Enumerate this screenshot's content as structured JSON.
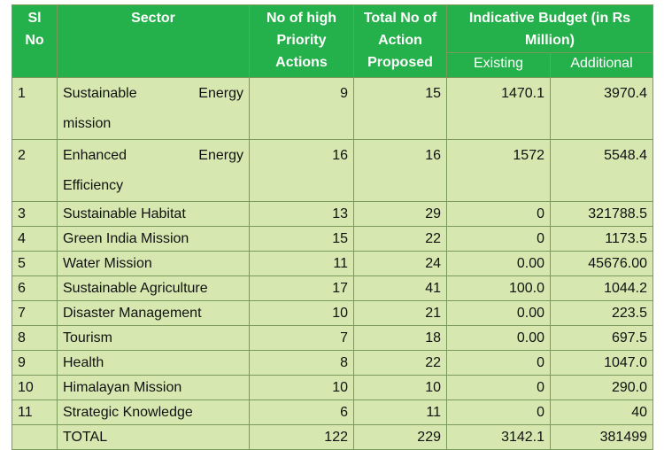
{
  "header": {
    "sl": "Sl\nNo",
    "sector": "Sector",
    "high": "No of high Priority Actions",
    "total": "Total No of Action Proposed",
    "budget": "Indicative Budget (in Rs Million)",
    "existing": "Existing",
    "additional": "Additional"
  },
  "rows": [
    {
      "sl": "1",
      "sector_a": "Sustainable",
      "sector_b": "Energy",
      "sector_c": "mission",
      "high": "9",
      "total": "15",
      "existing": "1470.1",
      "additional": "3970.4"
    },
    {
      "sl": "2",
      "sector_a": "Enhanced",
      "sector_b": "Energy",
      "sector_c": "Efficiency",
      "high": "16",
      "total": "16",
      "existing": "1572",
      "additional": "5548.4"
    },
    {
      "sl": "3",
      "sector": "Sustainable Habitat",
      "high": "13",
      "total": "29",
      "existing": "0",
      "additional": "321788.5"
    },
    {
      "sl": "4",
      "sector": "Green India Mission",
      "high": "15",
      "total": "22",
      "existing": "0",
      "additional": "1173.5"
    },
    {
      "sl": "5",
      "sector": "Water Mission",
      "high": "11",
      "total": "24",
      "existing": "0.00",
      "additional": "45676.00"
    },
    {
      "sl": "6",
      "sector": "Sustainable Agriculture",
      "high": "17",
      "total": "41",
      "existing": "100.0",
      "additional": "1044.2"
    },
    {
      "sl": "7",
      "sector": "Disaster Management",
      "high": "10",
      "total": "21",
      "existing": "0.00",
      "additional": "223.5"
    },
    {
      "sl": "8",
      "sector": "Tourism",
      "high": "7",
      "total": "18",
      "existing": "0.00",
      "additional": "697.5"
    },
    {
      "sl": "9",
      "sector": "Health",
      "high": "8",
      "total": "22",
      "existing": "0",
      "additional": "1047.0"
    },
    {
      "sl": "10",
      "sector": "Himalayan Mission",
      "high": "10",
      "total": "10",
      "existing": "0",
      "additional": "290.0"
    },
    {
      "sl": "11",
      "sector": "Strategic Knowledge",
      "high": "6",
      "total": "11",
      "existing": "0",
      "additional": "40"
    }
  ],
  "total": {
    "label": "TOTAL",
    "high": "122",
    "total": "229",
    "existing": "3142.1",
    "additional": "381499"
  }
}
